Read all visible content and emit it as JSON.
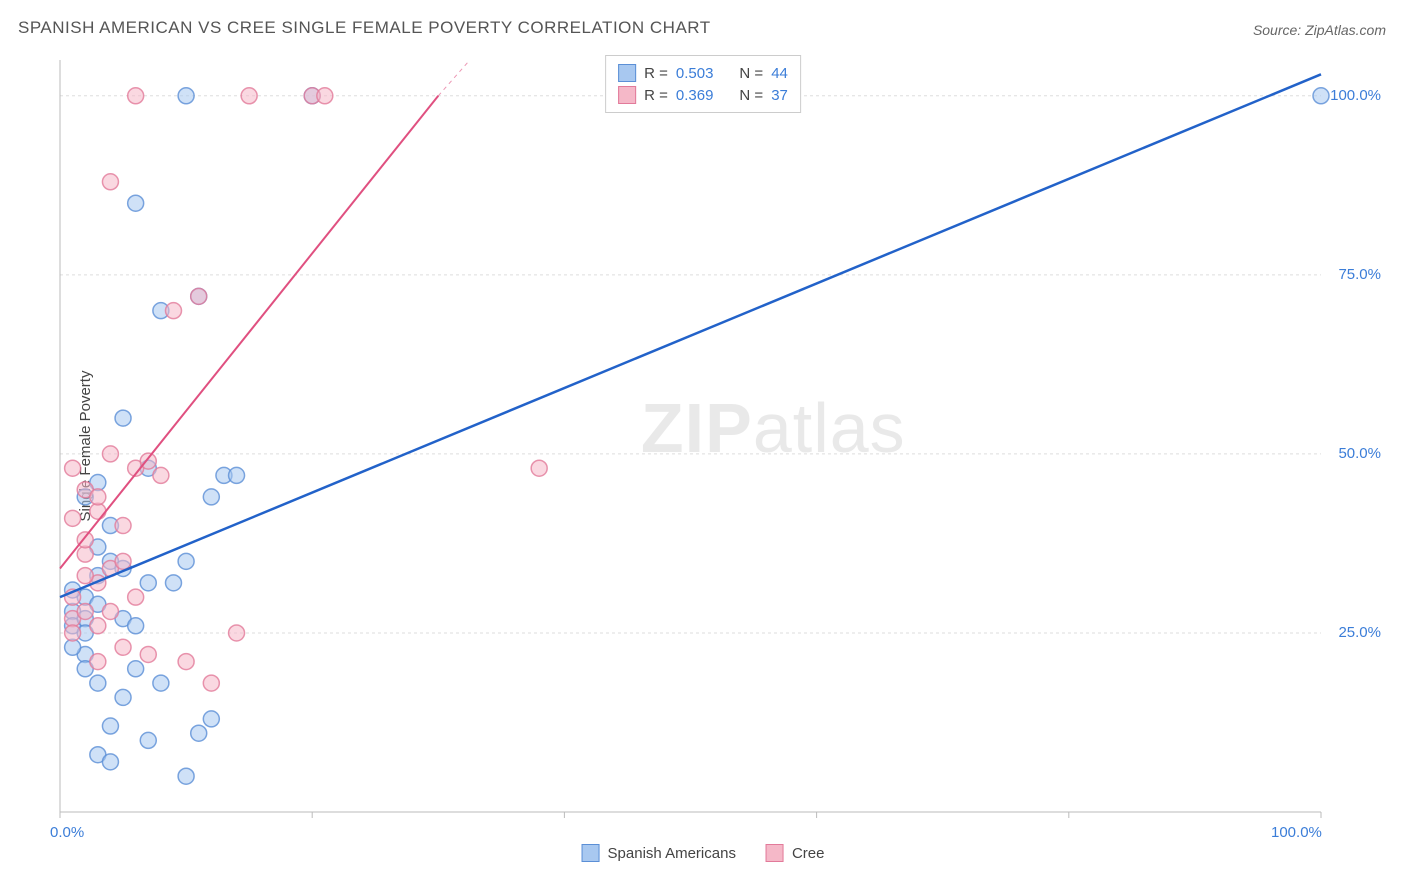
{
  "title": "SPANISH AMERICAN VS CREE SINGLE FEMALE POVERTY CORRELATION CHART",
  "source": "Source: ZipAtlas.com",
  "ylabel": "Single Female Poverty",
  "watermark_zip": "ZIP",
  "watermark_atlas": "atlas",
  "chart": {
    "type": "scatter-with-trendlines",
    "xlim": [
      0,
      100
    ],
    "ylim": [
      0,
      105
    ],
    "x_ticks": [
      0,
      20,
      40,
      60,
      80,
      100
    ],
    "y_ticks": [
      25,
      50,
      75,
      100
    ],
    "x_tick_labels": {
      "0": "0.0%",
      "100": "100.0%"
    },
    "y_tick_labels": {
      "25": "25.0%",
      "50": "50.0%",
      "75": "75.0%",
      "100": "100.0%"
    },
    "background_color": "#ffffff",
    "grid_color": "#dddddd",
    "axis_color": "#bbbbbb",
    "tick_label_color": "#3b7dd8",
    "marker_radius": 8,
    "marker_opacity": 0.55,
    "marker_stroke_width": 1.5,
    "series": [
      {
        "name": "Spanish Americans",
        "fill_color": "#a8c8f0",
        "stroke_color": "#5b8fd6",
        "line_color": "#2262c9",
        "line_width": 2.5,
        "R": "0.503",
        "N": "44",
        "trend_start": [
          0,
          30
        ],
        "trend_end": [
          100,
          103
        ],
        "points": [
          [
            1,
            28
          ],
          [
            1,
            26
          ],
          [
            2,
            27
          ],
          [
            2,
            30
          ],
          [
            3,
            33
          ],
          [
            4,
            35
          ],
          [
            3,
            37
          ],
          [
            2,
            22
          ],
          [
            3,
            18
          ],
          [
            5,
            16
          ],
          [
            4,
            12
          ],
          [
            7,
            10
          ],
          [
            11,
            11
          ],
          [
            12,
            13
          ],
          [
            3,
            8
          ],
          [
            1,
            23
          ],
          [
            2,
            25
          ],
          [
            6,
            20
          ],
          [
            8,
            18
          ],
          [
            9,
            32
          ],
          [
            10,
            35
          ],
          [
            12,
            44
          ],
          [
            13,
            47
          ],
          [
            14,
            47
          ],
          [
            7,
            32
          ],
          [
            5,
            55
          ],
          [
            6,
            85
          ],
          [
            11,
            72
          ],
          [
            8,
            70
          ],
          [
            7,
            48
          ],
          [
            4,
            40
          ],
          [
            2,
            44
          ],
          [
            3,
            29
          ],
          [
            1,
            31
          ],
          [
            5,
            27
          ],
          [
            6,
            26
          ],
          [
            10,
            5
          ],
          [
            4,
            7
          ],
          [
            2,
            20
          ],
          [
            5,
            34
          ],
          [
            10,
            100
          ],
          [
            20,
            100
          ],
          [
            100,
            100
          ],
          [
            3,
            46
          ]
        ]
      },
      {
        "name": "Cree",
        "fill_color": "#f5b8c8",
        "stroke_color": "#e27a9a",
        "line_color": "#e05080",
        "line_width": 2,
        "R": "0.369",
        "N": "37",
        "trend_start": [
          0,
          34
        ],
        "trend_end": [
          30,
          100
        ],
        "trend_dashed_from": [
          30,
          100
        ],
        "trend_dashed_to": [
          50,
          140
        ],
        "points": [
          [
            1,
            27
          ],
          [
            2,
            28
          ],
          [
            1,
            30
          ],
          [
            3,
            32
          ],
          [
            4,
            34
          ],
          [
            2,
            36
          ],
          [
            5,
            40
          ],
          [
            3,
            42
          ],
          [
            6,
            48
          ],
          [
            4,
            50
          ],
          [
            7,
            49
          ],
          [
            8,
            47
          ],
          [
            3,
            21
          ],
          [
            5,
            23
          ],
          [
            7,
            22
          ],
          [
            10,
            21
          ],
          [
            12,
            18
          ],
          [
            14,
            25
          ],
          [
            2,
            45
          ],
          [
            1,
            48
          ],
          [
            4,
            88
          ],
          [
            9,
            70
          ],
          [
            11,
            72
          ],
          [
            2,
            38
          ],
          [
            6,
            30
          ],
          [
            4,
            28
          ],
          [
            1,
            25
          ],
          [
            3,
            26
          ],
          [
            5,
            35
          ],
          [
            2,
            33
          ],
          [
            6,
            100
          ],
          [
            15,
            100
          ],
          [
            20,
            100
          ],
          [
            21,
            100
          ],
          [
            38,
            48
          ],
          [
            1,
            41
          ],
          [
            3,
            44
          ]
        ]
      }
    ]
  },
  "legend": {
    "R_label": "R =",
    "N_label": "N ="
  },
  "bottom_legend_labels": [
    "Spanish Americans",
    "Cree"
  ]
}
